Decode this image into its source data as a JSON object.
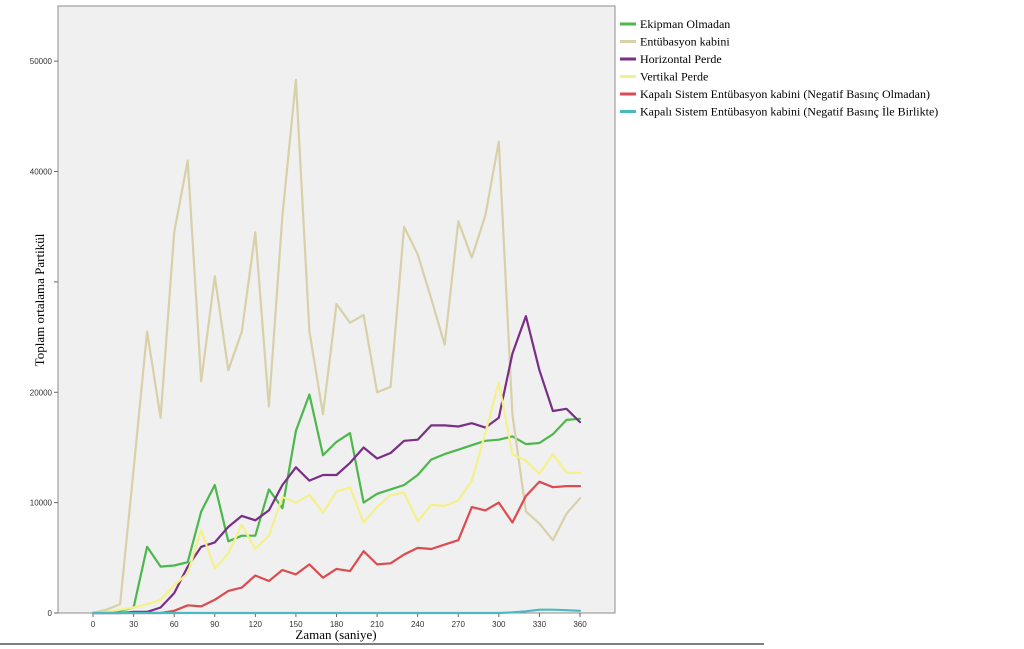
{
  "chart_data": {
    "type": "line",
    "xlabel": "Zaman (saniye)",
    "ylabel": "Toplam ortalama Partikül",
    "xlim": [
      -10,
      370
    ],
    "ylim": [
      0,
      55000
    ],
    "x_ticks": [
      0,
      30,
      60,
      90,
      120,
      150,
      180,
      210,
      240,
      270,
      300,
      330,
      360
    ],
    "y_ticks": [
      0,
      10000,
      20000,
      30000,
      40000,
      50000
    ],
    "y_tick_labels": [
      "0",
      "10000",
      "20000",
      "",
      "40000",
      "50000"
    ],
    "grid": false,
    "background": "#f0f0f0",
    "legend_position": "right",
    "x": [
      0,
      10,
      20,
      30,
      40,
      50,
      60,
      70,
      80,
      90,
      100,
      110,
      120,
      130,
      140,
      150,
      160,
      170,
      180,
      190,
      200,
      210,
      220,
      230,
      240,
      250,
      260,
      270,
      280,
      290,
      300,
      310,
      320,
      330,
      340,
      350,
      360
    ],
    "series": [
      {
        "name": "Ekipman Olmadan",
        "color": "#4cb84c",
        "values": [
          0,
          100,
          200,
          500,
          6000,
          4200,
          4300,
          4600,
          9200,
          11600,
          6500,
          7000,
          7000,
          11200,
          9500,
          16500,
          19800,
          14300,
          15500,
          16300,
          10000,
          10800,
          11200,
          11600,
          12500,
          13900,
          14400,
          14800,
          15200,
          15600,
          15700,
          16000,
          15300,
          15400,
          16200,
          17500,
          17600
        ]
      },
      {
        "name": "Entübasyon kabini",
        "color": "#d8d0a8",
        "values": [
          0,
          300,
          800,
          13000,
          25500,
          17700,
          34500,
          41000,
          21000,
          30500,
          22000,
          25500,
          34500,
          18700,
          36000,
          48300,
          25500,
          18000,
          28000,
          26300,
          27000,
          20000,
          20500,
          35000,
          32500,
          28500,
          24300,
          35500,
          32200,
          36000,
          42700,
          18000,
          9200,
          8100,
          6600,
          9000,
          10400
        ]
      },
      {
        "name": "Horizontal Perde",
        "color": "#7a2e86",
        "values": [
          0,
          0,
          0,
          100,
          100,
          500,
          1800,
          4200,
          6000,
          6400,
          7800,
          8800,
          8400,
          9300,
          11600,
          13200,
          12000,
          12500,
          12500,
          13600,
          15000,
          14000,
          14500,
          15600,
          15700,
          17000,
          17000,
          16900,
          17200,
          16800,
          17700,
          23500,
          26900,
          22000,
          18300,
          18500,
          17300
        ]
      },
      {
        "name": "Vertikal Perde",
        "color": "#f4f08c",
        "values": [
          0,
          100,
          300,
          500,
          800,
          1200,
          2500,
          3600,
          7500,
          4000,
          5400,
          8000,
          5800,
          7000,
          10500,
          10000,
          10700,
          9100,
          11000,
          11400,
          8200,
          9600,
          10700,
          10900,
          8300,
          9800,
          9700,
          10200,
          12000,
          16300,
          20900,
          14400,
          13800,
          12600,
          14400,
          12700,
          12700
        ]
      },
      {
        "name": "Kapalı Sistem Entübasyon kabini (Negatif Basınç Olmadan)",
        "color": "#dc4b50",
        "values": [
          0,
          0,
          0,
          0,
          0,
          0,
          200,
          700,
          600,
          1200,
          2000,
          2300,
          3400,
          2900,
          3900,
          3500,
          4400,
          3200,
          4000,
          3800,
          5600,
          4400,
          4500,
          5300,
          5900,
          5800,
          6200,
          6600,
          9600,
          9300,
          10000,
          8200,
          10600,
          11900,
          11400,
          11500,
          11500
        ]
      },
      {
        "name": "Kapalı Sistem Entübasyon kabini (Negatif Basınç İle Birlikte)",
        "color": "#4cb8c0",
        "values": [
          0,
          0,
          0,
          0,
          0,
          0,
          0,
          0,
          0,
          0,
          0,
          0,
          0,
          0,
          0,
          0,
          0,
          0,
          0,
          0,
          0,
          0,
          0,
          0,
          0,
          0,
          0,
          0,
          0,
          0,
          0,
          50,
          150,
          300,
          300,
          250,
          200
        ]
      }
    ]
  }
}
